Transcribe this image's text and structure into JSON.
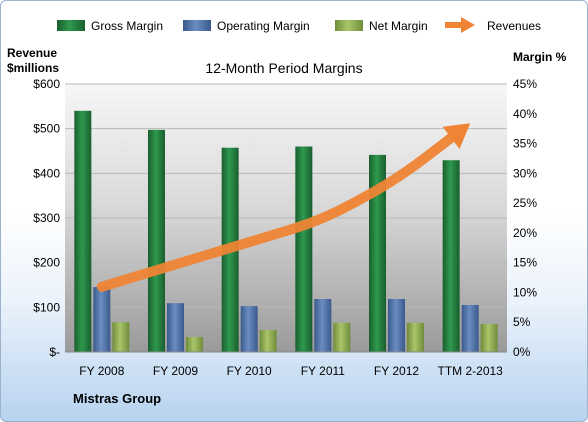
{
  "chart_data": {
    "type": "bar",
    "title": "12-Month Period Margins",
    "left_axis_title_1": "Revenue",
    "left_axis_title_2": "$millions",
    "right_axis_title": "Margin %",
    "categories": [
      "FY 2008",
      "FY 2009",
      "FY 2010",
      "FY 2011",
      "FY 2012",
      "TTM 2-2013"
    ],
    "left_ticks": [
      "$-",
      "$100",
      "$200",
      "$300",
      "$400",
      "$500",
      "$600"
    ],
    "right_ticks": [
      "0%",
      "5%",
      "10%",
      "15%",
      "20%",
      "25%",
      "30%",
      "35%",
      "40%",
      "45%"
    ],
    "left_ylim": [
      0,
      600
    ],
    "right_ylim": [
      0,
      45
    ],
    "series": [
      {
        "name": "Gross Margin",
        "axis": "right",
        "color": "#217a3c",
        "values": [
          40.5,
          37.3,
          34.3,
          34.5,
          33.1,
          32.2
        ]
      },
      {
        "name": "Operating Margin",
        "axis": "right",
        "color": "#4a6fa5",
        "values": [
          10.9,
          8.2,
          7.7,
          8.9,
          8.9,
          7.9
        ]
      },
      {
        "name": "Net Margin",
        "axis": "right",
        "color": "#8bab4e",
        "values": [
          5.0,
          2.5,
          3.7,
          4.9,
          4.9,
          4.7
        ]
      },
      {
        "name": "Revenues",
        "axis": "left",
        "type": "arrow",
        "color": "#ee8434",
        "values": [
          146,
          196,
          246,
          296,
          386,
          512
        ]
      }
    ],
    "grid": true,
    "legend_position": "top"
  },
  "footer": {
    "company": "Mistras Group"
  }
}
